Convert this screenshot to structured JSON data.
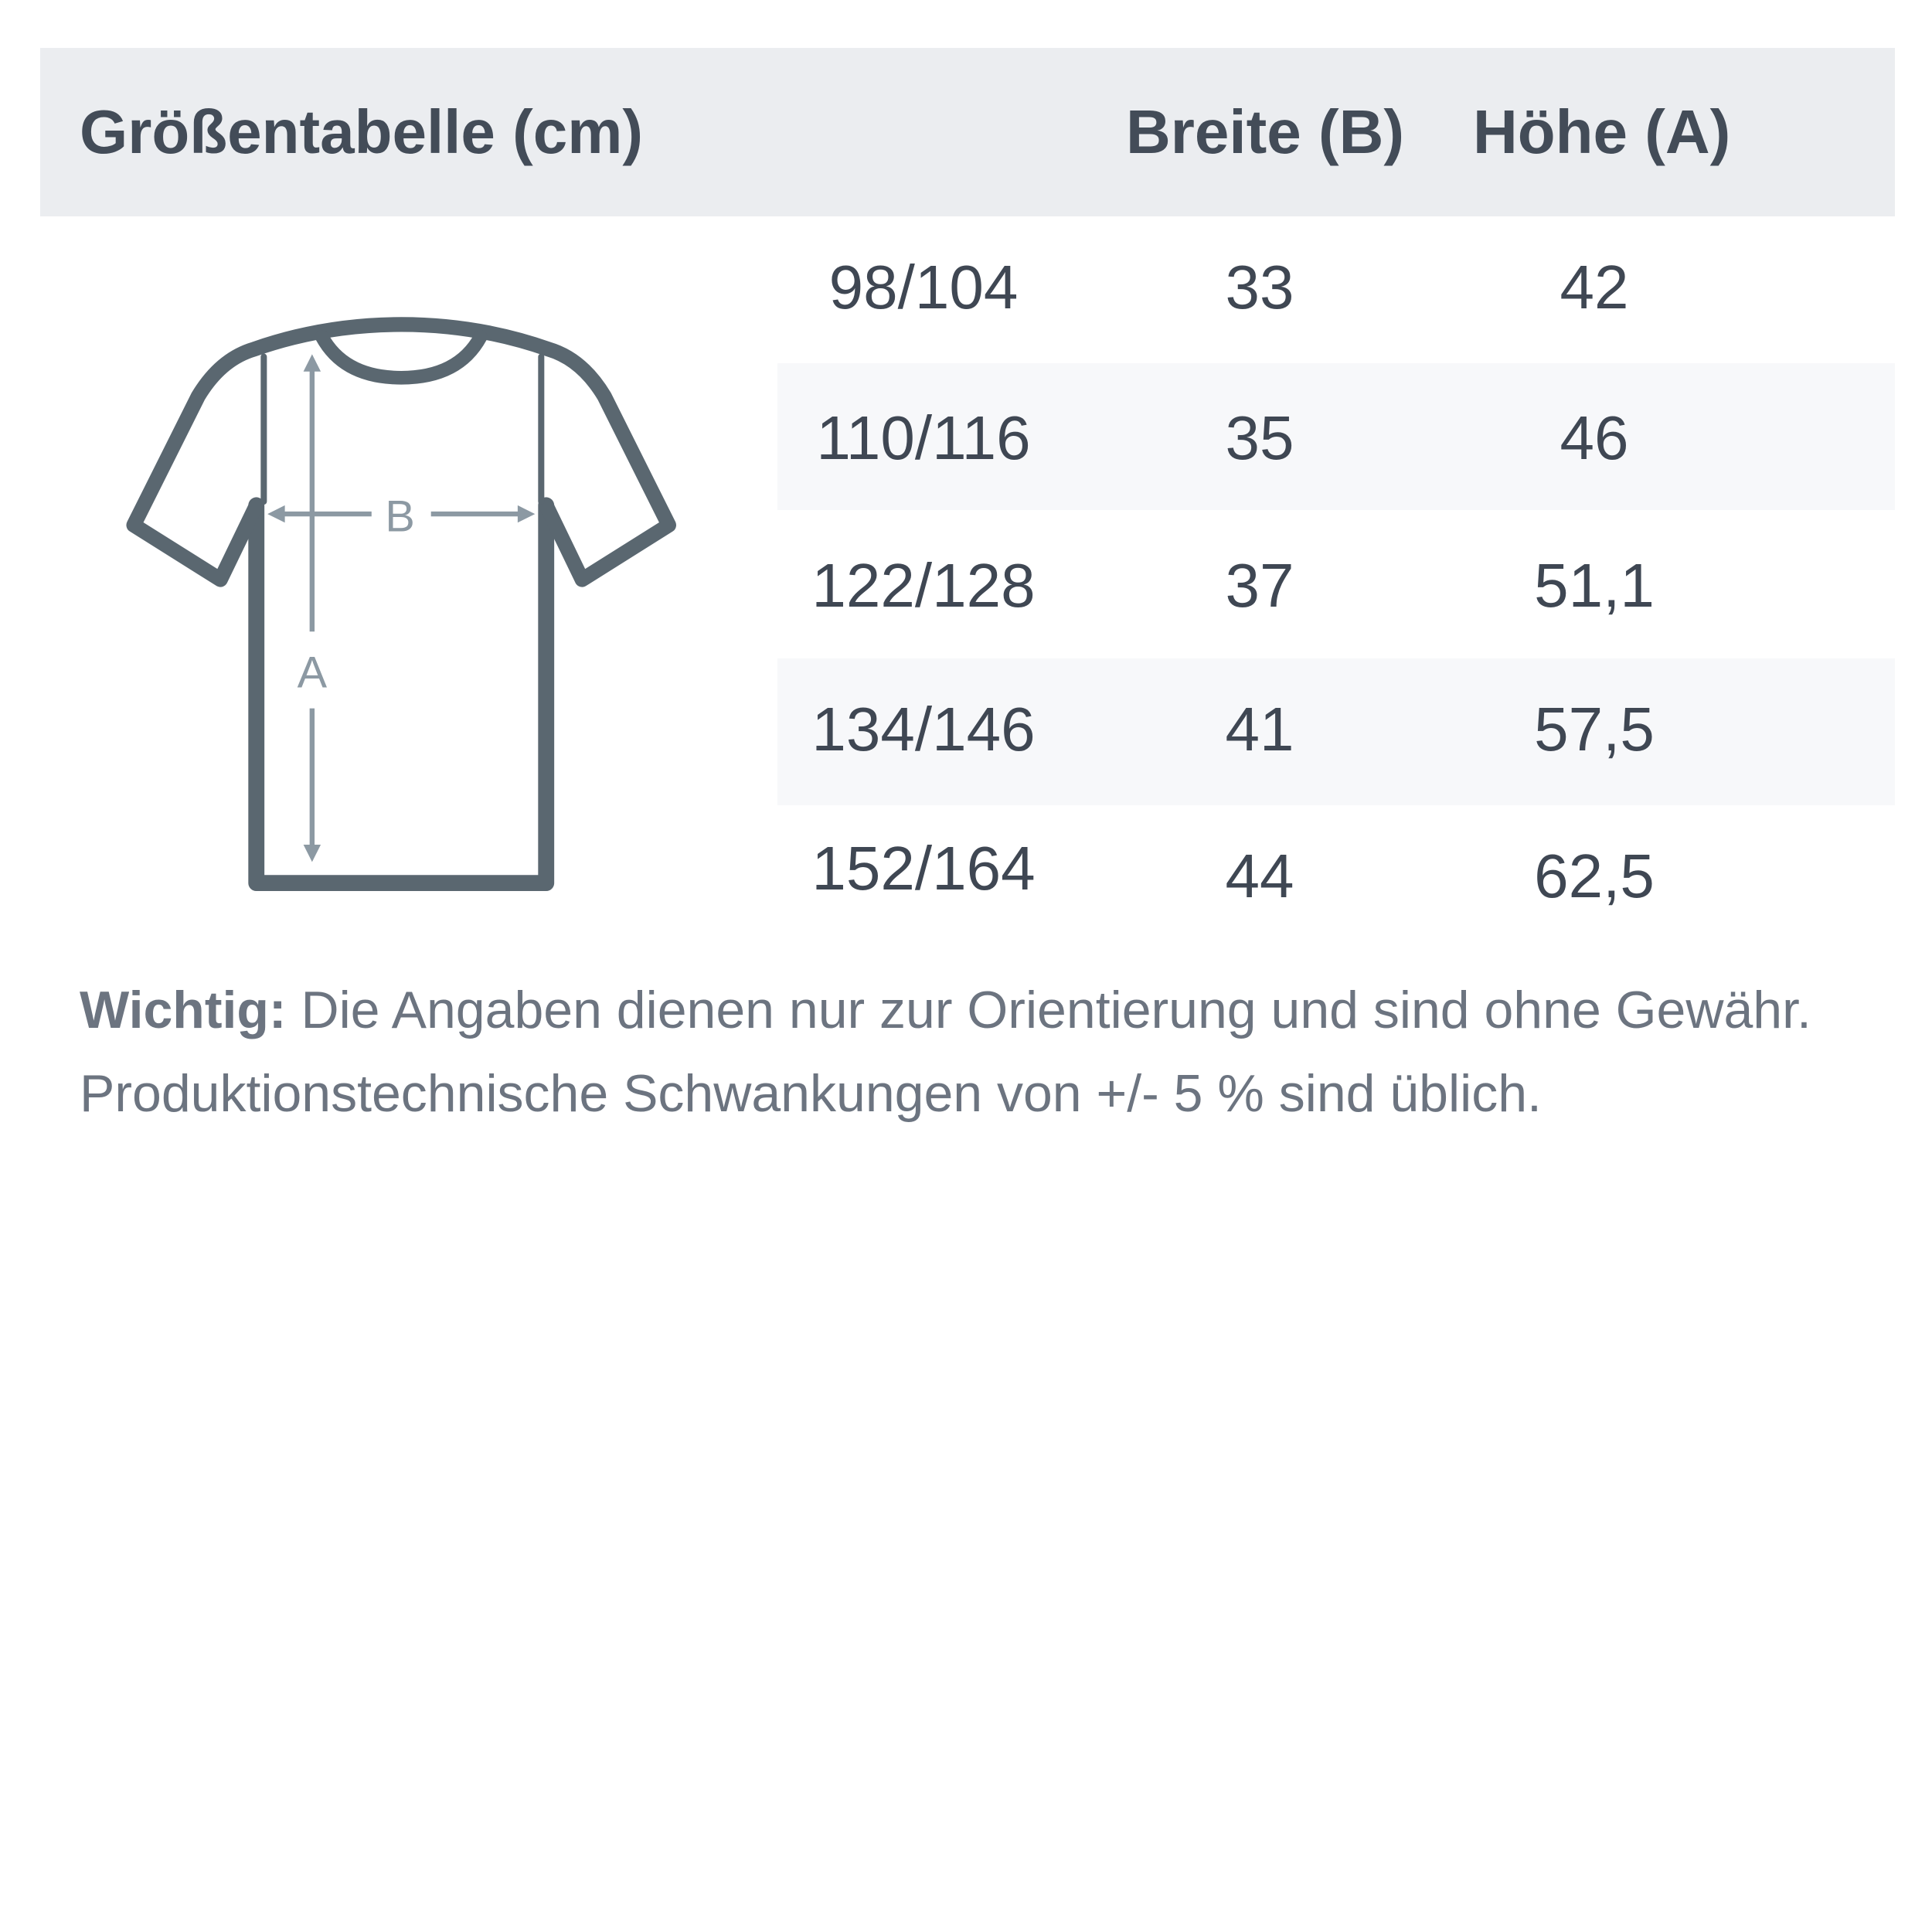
{
  "table": {
    "title": "Größentabelle (cm)",
    "columns": [
      "Breite (B)",
      "Höhe (A)"
    ],
    "rows": [
      {
        "size": "98/104",
        "breite": "33",
        "hoehe": "42"
      },
      {
        "size": "110/116",
        "breite": "35",
        "hoehe": "46"
      },
      {
        "size": "122/128",
        "breite": "37",
        "hoehe": "51,1"
      },
      {
        "size": "134/146",
        "breite": "41",
        "hoehe": "57,5"
      },
      {
        "size": "152/164",
        "breite": "44",
        "hoehe": "62,5"
      }
    ]
  },
  "diagram": {
    "icon": "tshirt-measurement-icon",
    "label_b": "B",
    "label_a": "A"
  },
  "note": {
    "bold": "Wichtig:",
    "line1": " Die Angaben dienen nur zur Orientierung und sind ohne Gewähr.",
    "line2": "Produktionstechnische Schwankungen von +/- 5 % sind üblich."
  },
  "colors": {
    "header_bg": "#ebedf0",
    "stripe": "#f7f8fa",
    "shirt": "#5a6770",
    "arrows": "#8c99a3"
  }
}
